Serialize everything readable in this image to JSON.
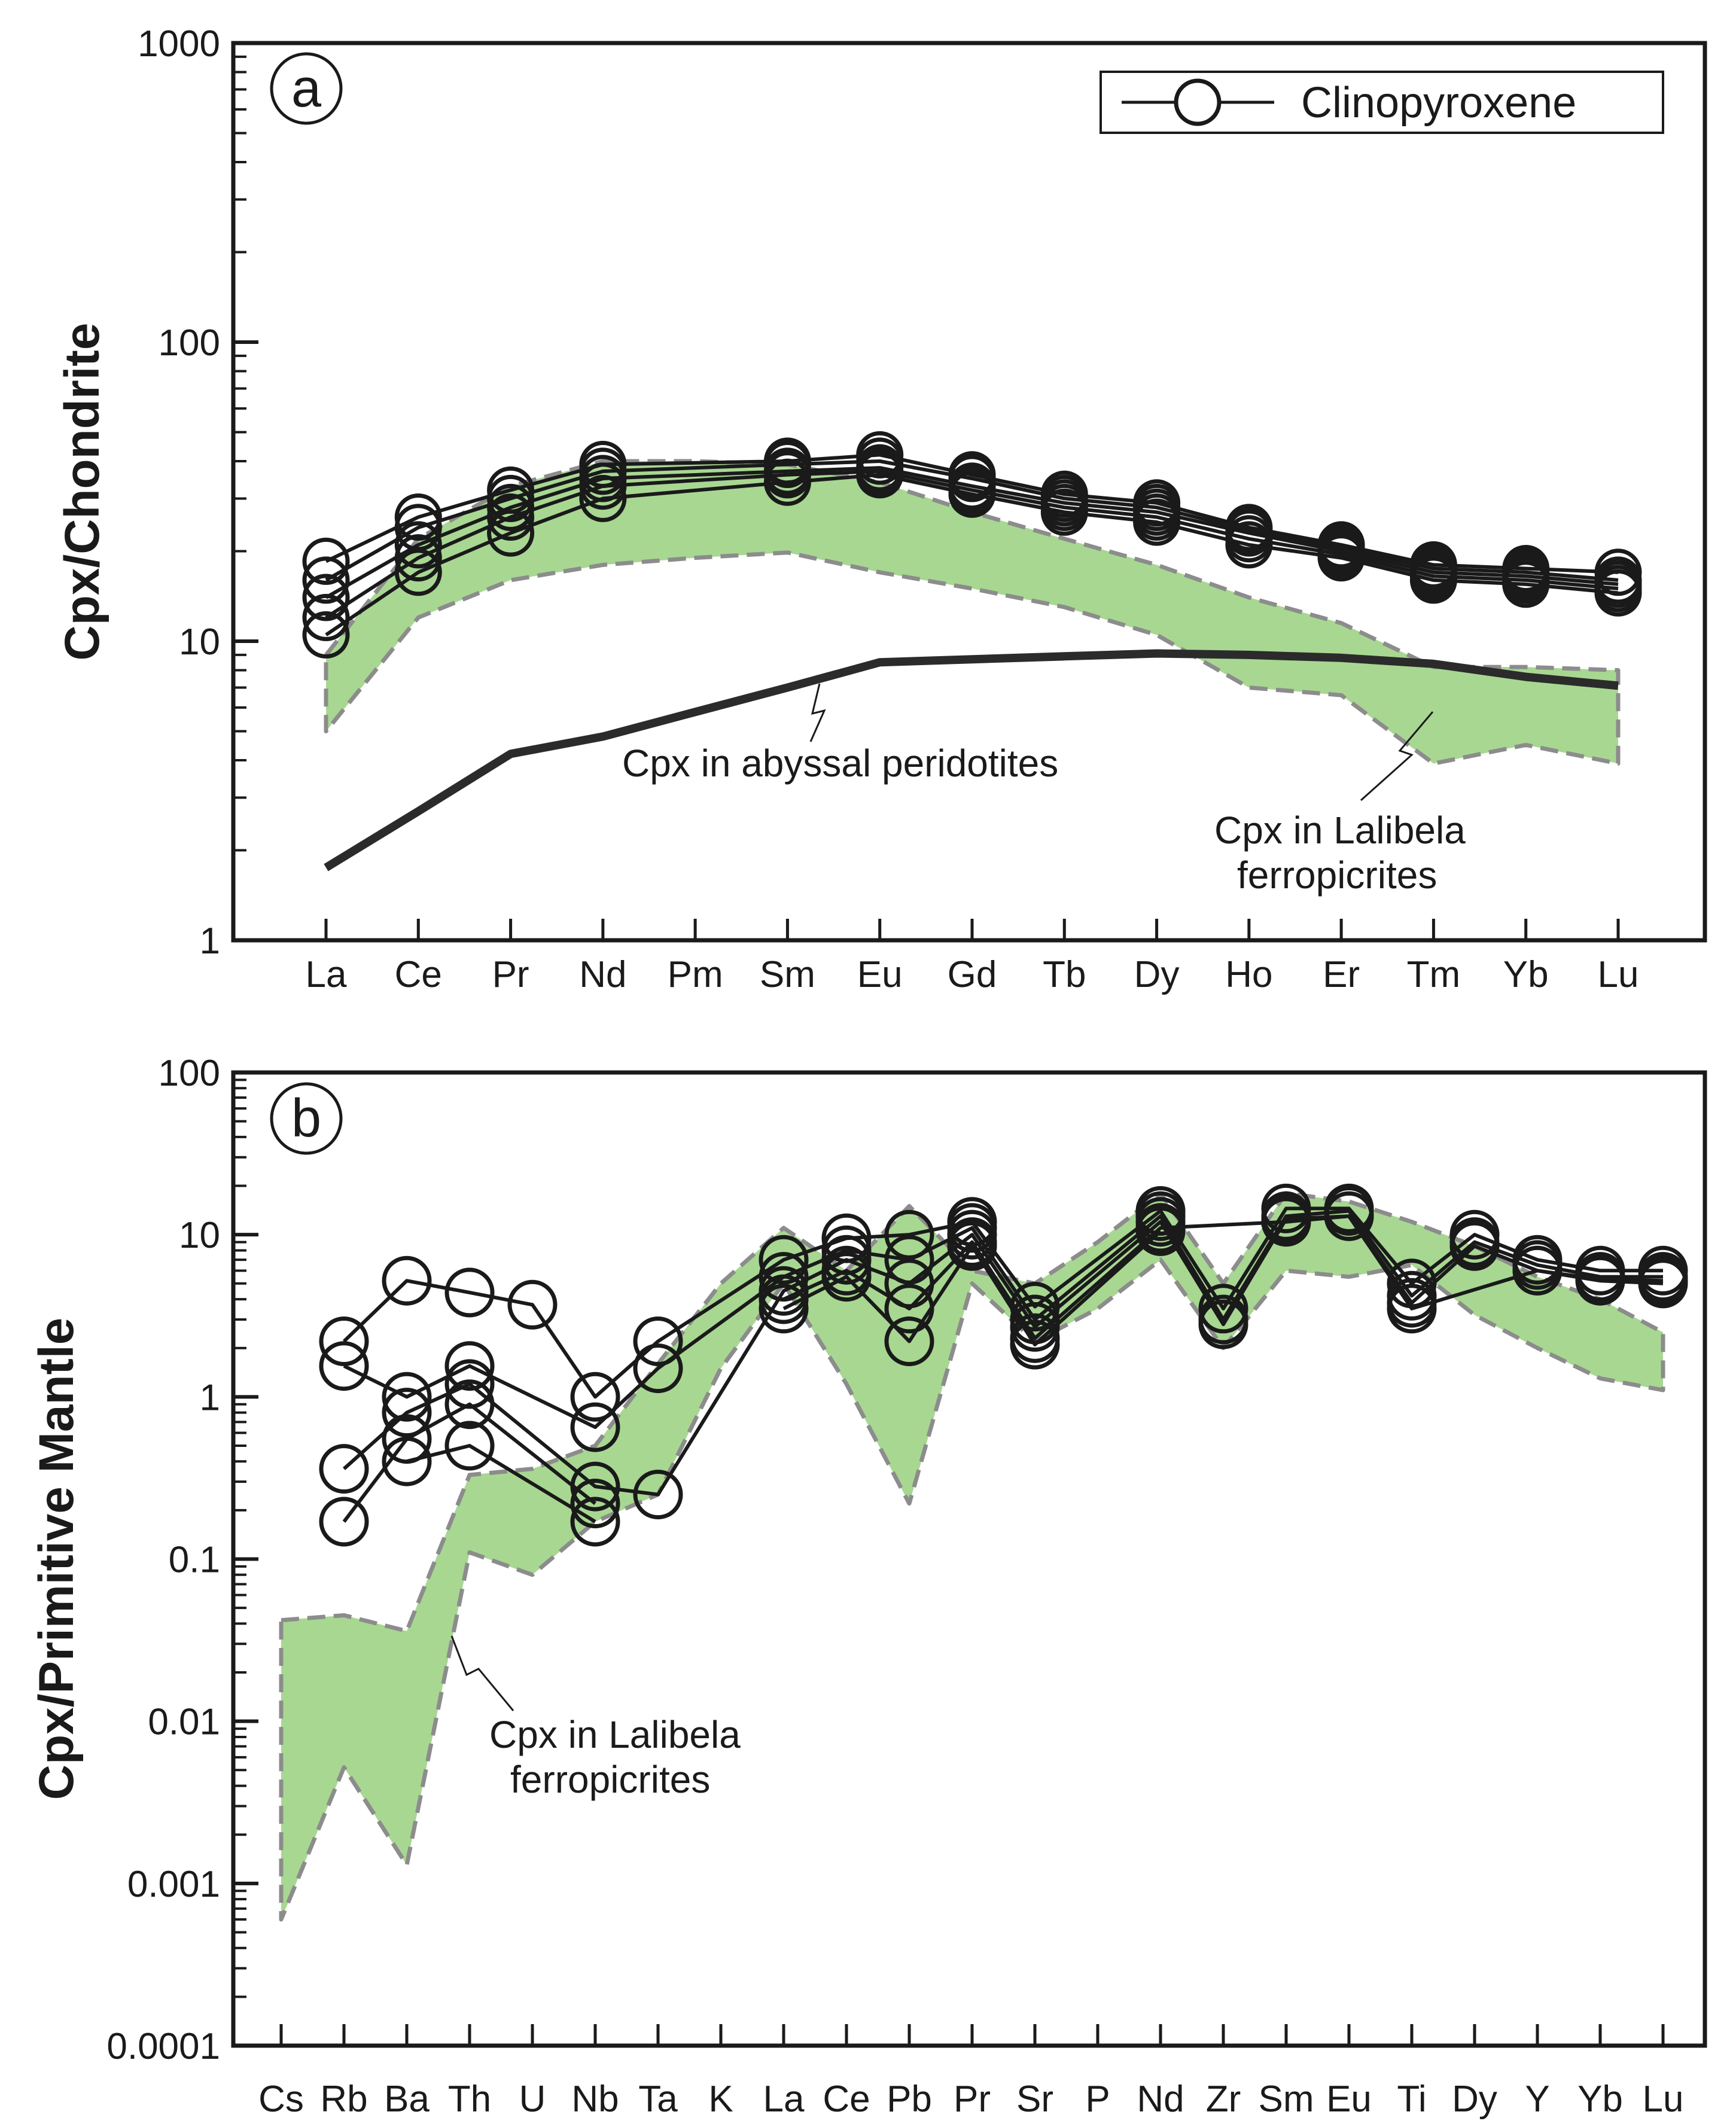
{
  "colors": {
    "band_fill": "#a8d792",
    "band_stroke": "#8c8c8c",
    "line": "#1a1a1a",
    "abyssal": "#2b2b2b"
  },
  "legend": {
    "label": "Clinopyroxene",
    "marker": "open-circle-with-line"
  },
  "chart_data": [
    {
      "panel": "a",
      "type": "line",
      "yscale": "log",
      "ylabel": "Cpx/Chondrite",
      "ylim": [
        1,
        1000
      ],
      "yticks": [
        "1",
        "10",
        "100",
        "1000"
      ],
      "categories": [
        "La",
        "Ce",
        "Pr",
        "Nd",
        "Pm",
        "Sm",
        "Eu",
        "Gd",
        "Tb",
        "Dy",
        "Ho",
        "Er",
        "Tm",
        "Yb",
        "Lu"
      ],
      "series": [
        {
          "name": "Clinopyroxene 1",
          "values": [
            18.5,
            26,
            32,
            39,
            null,
            40,
            42,
            36,
            31,
            29,
            24,
            21,
            18,
            17.5,
            17
          ]
        },
        {
          "name": "Clinopyroxene 2",
          "values": [
            16,
            24,
            30,
            37,
            null,
            39,
            40,
            35,
            30,
            28,
            23.5,
            20.5,
            17.5,
            17,
            16
          ]
        },
        {
          "name": "Clinopyroxene 3",
          "values": [
            14,
            21,
            28,
            35,
            null,
            37,
            38,
            33,
            29,
            27,
            23,
            20,
            17,
            16.5,
            15.5
          ]
        },
        {
          "name": "Clinopyroxene 4",
          "values": [
            12,
            19,
            26,
            33,
            null,
            36,
            37,
            32,
            28,
            26,
            22,
            19.5,
            16.5,
            16,
            15
          ]
        },
        {
          "name": "Clinopyroxene 5",
          "values": [
            10.5,
            17,
            23,
            30,
            null,
            34,
            36,
            31,
            27,
            25,
            21,
            19,
            16,
            15.5,
            14.5
          ]
        }
      ],
      "band": {
        "label": "Cpx in Lalibela ferropicrites",
        "upper": [
          9,
          22,
          33,
          40,
          40,
          39,
          34,
          27,
          22,
          18,
          14,
          11.5,
          8.2,
          8.2,
          8
        ],
        "lower": [
          5,
          12,
          16,
          18,
          19,
          19.8,
          17,
          15,
          13,
          10.5,
          7,
          6.6,
          3.9,
          4.5,
          3.9
        ]
      },
      "reference": {
        "label": "Cpx in abyssal peridotites",
        "values": [
          1.75,
          2.7,
          4.2,
          4.8,
          5.8,
          7,
          8.5,
          8.7,
          8.9,
          9.1,
          9.0,
          8.8,
          8.4,
          7.6,
          7.1
        ]
      },
      "annotations": [
        "Cpx in abyssal peridotites",
        "Cpx in Lalibela",
        "ferropicrites"
      ]
    },
    {
      "panel": "b",
      "type": "line",
      "yscale": "log",
      "ylabel": "Cpx/Primitive Mantle",
      "ylim": [
        0.0001,
        100
      ],
      "yticks": [
        "0.0001",
        "0.001",
        "0.01",
        "0.1",
        "1",
        "10",
        "100"
      ],
      "categories": [
        "Cs",
        "Rb",
        "Ba",
        "Th",
        "U",
        "Nb",
        "Ta",
        "K",
        "La",
        "Ce",
        "Pb",
        "Pr",
        "Sr",
        "P",
        "Nd",
        "Zr",
        "Sm",
        "Eu",
        "Ti",
        "Dy",
        "Y",
        "Yb",
        "Lu"
      ],
      "series": [
        {
          "name": "Clinopyroxene 1",
          "values": [
            null,
            2.2,
            5.2,
            4.4,
            3.7,
            1.0,
            2.2,
            null,
            7.0,
            9.5,
            10.0,
            12.0,
            3.6,
            null,
            14.0,
            3.5,
            14.5,
            14.5,
            5.0,
            10.0,
            7.0,
            6.0,
            6.0
          ]
        },
        {
          "name": "Clinopyroxene 2",
          "values": [
            null,
            1.55,
            1.0,
            1.55,
            null,
            0.65,
            1.5,
            null,
            5.5,
            8.0,
            7.0,
            11.0,
            3.0,
            null,
            13.0,
            3.0,
            13.0,
            14.0,
            4.2,
            9.0,
            6.5,
            5.5,
            5.5
          ]
        },
        {
          "name": "Clinopyroxene 3",
          "values": [
            null,
            0.36,
            0.8,
            1.2,
            null,
            0.28,
            0.25,
            null,
            4.5,
            7.0,
            5.0,
            10.0,
            2.7,
            null,
            12.0,
            2.8,
            12.5,
            13.0,
            3.8,
            8.5,
            6.0,
            5.3,
            5.2
          ]
        },
        {
          "name": "Clinopyroxene 4",
          "values": [
            null,
            0.17,
            0.55,
            0.9,
            null,
            0.22,
            null,
            null,
            4.0,
            6.0,
            3.5,
            9.0,
            2.3,
            null,
            11.0,
            null,
            12.0,
            13.0,
            3.5,
            null,
            6.0,
            5.2,
            5.0
          ]
        },
        {
          "name": "Clinopyroxene 5",
          "values": [
            null,
            null,
            0.4,
            0.5,
            null,
            0.17,
            null,
            null,
            3.5,
            5.5,
            2.2,
            8.5,
            2.1,
            null,
            10.5,
            null,
            null,
            null,
            null,
            null,
            null,
            null,
            null
          ]
        }
      ],
      "band": {
        "label": "Cpx in Lalibela ferropicrites",
        "upper": [
          0.042,
          0.045,
          0.036,
          0.33,
          0.36,
          0.5,
          1.6,
          5.0,
          11.0,
          6.0,
          15.0,
          6.0,
          5.0,
          9.0,
          18.0,
          5.0,
          18.0,
          16.0,
          12.0,
          8.5,
          5.5,
          4.0,
          2.5
        ],
        "lower": [
          0.0006,
          0.0052,
          0.0013,
          0.11,
          0.08,
          0.17,
          0.25,
          1.5,
          5.0,
          1.2,
          0.22,
          5.0,
          2.2,
          3.5,
          7.0,
          2.0,
          6.0,
          5.5,
          6.5,
          3.2,
          2.0,
          1.3,
          1.1
        ]
      },
      "annotations": [
        "Cpx in Lalibela",
        "ferropicrites"
      ]
    }
  ]
}
